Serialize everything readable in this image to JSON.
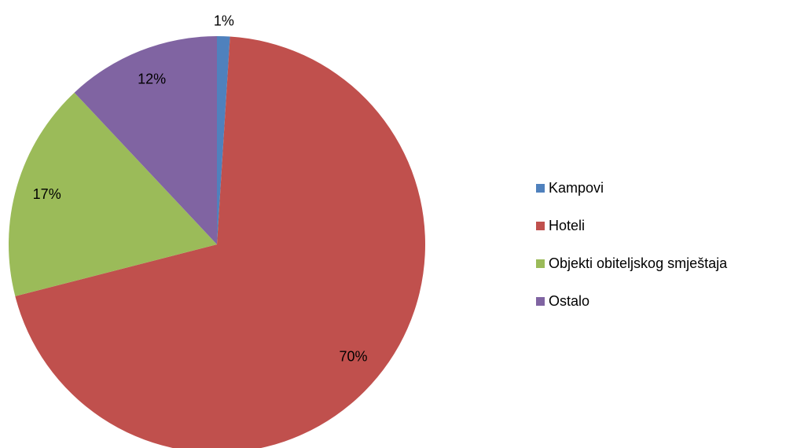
{
  "chart_data": {
    "type": "pie",
    "categories": [
      "Kampovi",
      "Hoteli",
      "Objekti obiteljskog smještaja",
      "Ostalo"
    ],
    "values": [
      1,
      70,
      17,
      12
    ],
    "value_labels": [
      "1%",
      "70%",
      "17%",
      "12%"
    ],
    "colors": [
      "#4f81bd",
      "#c0504d",
      "#9bbb59",
      "#8064a2"
    ],
    "legend": "right"
  }
}
